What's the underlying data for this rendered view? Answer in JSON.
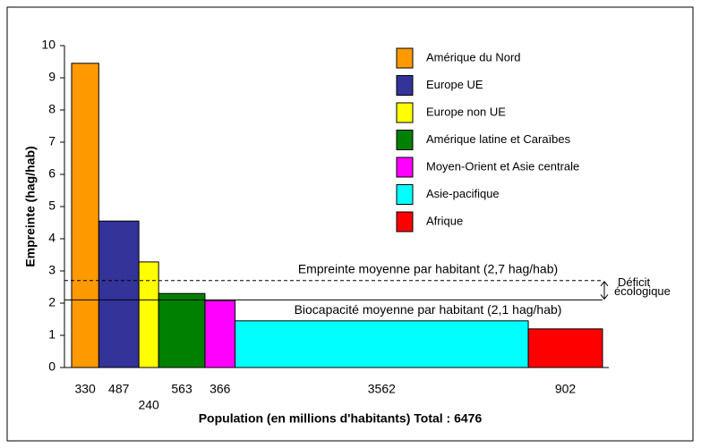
{
  "chart_data": {
    "type": "variable-width-bar",
    "ylabel": "Empreinte (hag/hab)",
    "xlabel": "Population (en millions d'habitants)  Total : 6476",
    "categories": [
      "Amérique du Nord",
      "Europe UE",
      "Europe non UE",
      "Amérique latine et Caraïbes",
      "Moyen-Orient et Asie centrale",
      "Asie-pacifique",
      "Afrique"
    ],
    "values": [
      9.45,
      4.55,
      3.28,
      2.3,
      2.08,
      1.45,
      1.2
    ],
    "widths": [
      330,
      487,
      240,
      563,
      366,
      3562,
      902
    ],
    "colors": [
      "#ff9900",
      "#333399",
      "#ffff00",
      "#008000",
      "#ff00ff",
      "#00ffff",
      "#ff0000"
    ],
    "ylim": [
      0,
      10
    ],
    "yticks": [
      0,
      1,
      2,
      3,
      4,
      5,
      6,
      7,
      8,
      9,
      10
    ],
    "reference_lines": [
      {
        "value": 2.7,
        "label": "Empreinte moyenne par habitant (2,7 hag/hab)",
        "style": "dashed"
      },
      {
        "value": 2.1,
        "label": "Biocapacité moyenne par habitant (2,1 hag/hab)",
        "style": "solid"
      }
    ],
    "annotation": [
      "Déficit",
      "écologique"
    ],
    "legend": "top-right"
  }
}
